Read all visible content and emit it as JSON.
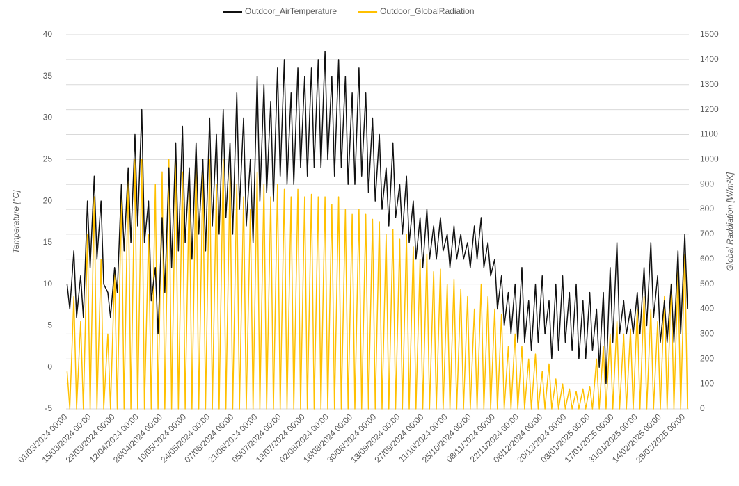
{
  "chart_data": {
    "type": "line",
    "y_label": "Temperature [°C]",
    "y2_label": "Global Raddiation [W/m²K]",
    "legend": "top",
    "grid": true,
    "ylim": [
      -5,
      40
    ],
    "yticks": [
      -5,
      0,
      5,
      10,
      15,
      20,
      25,
      30,
      35,
      40
    ],
    "y2lim": [
      0,
      1500
    ],
    "y2ticks": [
      0,
      100,
      200,
      300,
      400,
      500,
      600,
      700,
      800,
      900,
      1000,
      1100,
      1200,
      1300,
      1400,
      1500
    ],
    "xlim": [
      "01/03/2024 00:00",
      "03/03/2025 00:00"
    ],
    "xticks": [
      "01/03/2024 00:00",
      "15/03/2024 00:00",
      "29/03/2024 00:00",
      "12/04/2024 00:00",
      "26/04/2024 00:00",
      "10/05/2024 00:00",
      "24/05/2024 00:00",
      "07/06/2024 00:00",
      "21/06/2024 00:00",
      "05/07/2024 00:00",
      "19/07/2024 00:00",
      "02/08/2024 00:00",
      "16/08/2024 00:00",
      "30/08/2024 00:00",
      "13/09/2024 00:00",
      "27/09/2024 00:00",
      "11/10/2024 00:00",
      "25/10/2024 00:00",
      "08/11/2024 00:00",
      "22/11/2024 00:00",
      "06/12/2024 00:00",
      "20/12/2024 00:00",
      "03/01/2025 00:00",
      "17/01/2025 00:00",
      "31/01/2025 00:00",
      "14/02/2025 00:00",
      "28/02/2025 00:00"
    ],
    "x": [
      "01/03/2024 14:00",
      "03/03/2024 04:00",
      "05/03/2024 14:00",
      "07/03/2024 04:00",
      "09/03/2024 14:00",
      "11/03/2024 04:00",
      "13/03/2024 14:00",
      "15/03/2024 04:00",
      "17/03/2024 14:00",
      "19/03/2024 04:00",
      "21/03/2024 14:00",
      "23/03/2024 04:00",
      "25/03/2024 14:00",
      "27/03/2024 04:00",
      "29/03/2024 14:00",
      "31/03/2024 04:00",
      "02/04/2024 14:00",
      "04/04/2024 04:00",
      "06/04/2024 14:00",
      "08/04/2024 04:00",
      "10/04/2024 14:00",
      "12/04/2024 04:00",
      "14/04/2024 14:00",
      "16/04/2024 04:00",
      "18/04/2024 14:00",
      "20/04/2024 04:00",
      "22/04/2024 14:00",
      "24/04/2024 04:00",
      "26/04/2024 14:00",
      "28/04/2024 04:00",
      "30/04/2024 14:00",
      "02/05/2024 04:00",
      "04/05/2024 14:00",
      "06/05/2024 04:00",
      "08/05/2024 14:00",
      "10/05/2024 04:00",
      "12/05/2024 14:00",
      "14/05/2024 04:00",
      "16/05/2024 14:00",
      "18/05/2024 04:00",
      "20/05/2024 14:00",
      "22/05/2024 04:00",
      "24/05/2024 14:00",
      "26/05/2024 04:00",
      "28/05/2024 14:00",
      "30/05/2024 04:00",
      "01/06/2024 14:00",
      "03/06/2024 04:00",
      "05/06/2024 14:00",
      "07/06/2024 04:00",
      "09/06/2024 14:00",
      "11/06/2024 04:00",
      "13/06/2024 14:00",
      "15/06/2024 04:00",
      "17/06/2024 14:00",
      "19/06/2024 04:00",
      "21/06/2024 14:00",
      "23/06/2024 04:00",
      "25/06/2024 14:00",
      "27/06/2024 04:00",
      "29/06/2024 14:00",
      "01/07/2024 04:00",
      "03/07/2024 14:00",
      "05/07/2024 04:00",
      "07/07/2024 14:00",
      "09/07/2024 04:00",
      "11/07/2024 14:00",
      "13/07/2024 04:00",
      "15/07/2024 14:00",
      "17/07/2024 04:00",
      "19/07/2024 14:00",
      "21/07/2024 04:00",
      "23/07/2024 14:00",
      "25/07/2024 04:00",
      "27/07/2024 14:00",
      "29/07/2024 04:00",
      "31/07/2024 14:00",
      "02/08/2024 04:00",
      "04/08/2024 14:00",
      "06/08/2024 04:00",
      "08/08/2024 14:00",
      "10/08/2024 04:00",
      "12/08/2024 14:00",
      "14/08/2024 04:00",
      "16/08/2024 14:00",
      "18/08/2024 04:00",
      "20/08/2024 14:00",
      "22/08/2024 04:00",
      "24/08/2024 14:00",
      "26/08/2024 04:00",
      "28/08/2024 14:00",
      "30/08/2024 04:00",
      "01/09/2024 14:00",
      "03/09/2024 04:00",
      "05/09/2024 14:00",
      "07/09/2024 04:00",
      "09/09/2024 14:00",
      "11/09/2024 04:00",
      "13/09/2024 14:00",
      "15/09/2024 04:00",
      "17/09/2024 14:00",
      "19/09/2024 04:00",
      "21/09/2024 14:00",
      "23/09/2024 04:00",
      "25/09/2024 14:00",
      "27/09/2024 04:00",
      "29/09/2024 14:00",
      "01/10/2024 04:00",
      "03/10/2024 14:00",
      "05/10/2024 04:00",
      "07/10/2024 14:00",
      "09/10/2024 04:00",
      "11/10/2024 14:00",
      "13/10/2024 04:00",
      "15/10/2024 14:00",
      "17/10/2024 04:00",
      "19/10/2024 14:00",
      "21/10/2024 04:00",
      "23/10/2024 14:00",
      "25/10/2024 04:00",
      "27/10/2024 14:00",
      "29/10/2024 04:00",
      "31/10/2024 14:00",
      "02/11/2024 04:00",
      "04/11/2024 14:00",
      "06/11/2024 04:00",
      "08/11/2024 14:00",
      "10/11/2024 04:00",
      "12/11/2024 14:00",
      "14/11/2024 04:00",
      "16/11/2024 14:00",
      "18/11/2024 04:00",
      "20/11/2024 14:00",
      "22/11/2024 04:00",
      "24/11/2024 14:00",
      "26/11/2024 04:00",
      "28/11/2024 14:00",
      "30/11/2024 04:00",
      "02/12/2024 14:00",
      "04/12/2024 04:00",
      "06/12/2024 14:00",
      "08/12/2024 04:00",
      "10/12/2024 14:00",
      "12/12/2024 04:00",
      "14/12/2024 14:00",
      "16/12/2024 04:00",
      "18/12/2024 14:00",
      "20/12/2024 04:00",
      "22/12/2024 14:00",
      "24/12/2024 04:00",
      "26/12/2024 14:00",
      "28/12/2024 04:00",
      "30/12/2024 14:00",
      "01/01/2025 04:00",
      "03/01/2025 14:00",
      "05/01/2025 04:00",
      "07/01/2025 14:00",
      "09/01/2025 04:00",
      "11/01/2025 14:00",
      "13/01/2025 04:00",
      "15/01/2025 14:00",
      "17/01/2025 04:00",
      "19/01/2025 14:00",
      "21/01/2025 04:00",
      "23/01/2025 14:00",
      "25/01/2025 04:00",
      "27/01/2025 14:00",
      "29/01/2025 04:00",
      "31/01/2025 14:00",
      "02/02/2025 04:00",
      "04/02/2025 14:00",
      "06/02/2025 04:00",
      "08/02/2025 14:00",
      "10/02/2025 04:00",
      "12/02/2025 14:00",
      "14/02/2025 04:00",
      "16/02/2025 14:00",
      "18/02/2025 04:00",
      "20/02/2025 14:00",
      "22/02/2025 04:00",
      "24/02/2025 14:00",
      "26/02/2025 04:00",
      "28/02/2025 14:00",
      "02/03/2025 04:00"
    ],
    "series": [
      {
        "name": "Outdoor_AirTemperature",
        "color": "#111111",
        "axis": "y",
        "values": [
          10,
          7,
          14,
          6,
          11,
          6,
          20,
          12,
          23,
          13,
          20,
          10,
          9,
          6,
          12,
          9,
          22,
          14,
          24,
          15,
          28,
          17,
          31,
          15,
          20,
          8,
          12,
          4,
          18,
          9,
          24,
          12,
          27,
          14,
          29,
          15,
          24,
          13,
          27,
          16,
          25,
          14,
          30,
          17,
          28,
          16,
          31,
          18,
          27,
          16,
          33,
          19,
          30,
          17,
          25,
          15,
          35,
          20,
          34,
          21,
          32,
          20,
          36,
          23,
          37,
          22,
          33,
          22,
          36,
          24,
          35,
          23,
          36,
          24,
          37,
          24,
          38,
          25,
          35,
          23,
          37,
          24,
          35,
          22,
          33,
          22,
          36,
          23,
          33,
          21,
          30,
          20,
          28,
          19,
          24,
          17,
          27,
          18,
          22,
          16,
          23,
          15,
          20,
          13,
          18,
          12,
          19,
          13,
          17,
          13,
          18,
          14,
          16,
          12,
          17,
          13,
          16,
          13,
          15,
          12,
          17,
          13,
          18,
          12,
          15,
          11,
          13,
          7,
          11,
          5,
          9,
          4,
          10,
          3,
          12,
          3,
          8,
          2,
          10,
          3,
          11,
          4,
          8,
          1,
          10,
          2,
          11,
          3,
          9,
          2,
          10,
          1,
          8,
          1,
          9,
          2,
          7,
          0,
          9,
          -2,
          12,
          3,
          15,
          4,
          8,
          4,
          7,
          4,
          9,
          4,
          12,
          5,
          15,
          6,
          11,
          3,
          8,
          3,
          10,
          3,
          14,
          4,
          16,
          7
        ]
      },
      {
        "name": "Outdoor_GlobalRadiation",
        "color": "#ffc000",
        "axis": "y2",
        "values": [
          150,
          0,
          450,
          0,
          350,
          0,
          700,
          0,
          850,
          0,
          600,
          0,
          300,
          0,
          550,
          0,
          850,
          0,
          950,
          0,
          1000,
          0,
          1000,
          0,
          700,
          0,
          900,
          0,
          950,
          0,
          1000,
          0,
          1000,
          0,
          950,
          0,
          900,
          0,
          1000,
          0,
          950,
          0,
          1000,
          0,
          900,
          0,
          1000,
          0,
          950,
          0,
          900,
          0,
          850,
          0,
          800,
          0,
          950,
          0,
          900,
          0,
          850,
          0,
          900,
          0,
          880,
          0,
          850,
          0,
          880,
          0,
          850,
          0,
          860,
          0,
          850,
          0,
          850,
          0,
          820,
          0,
          850,
          0,
          800,
          0,
          780,
          0,
          800,
          0,
          780,
          0,
          760,
          0,
          750,
          0,
          700,
          0,
          720,
          0,
          680,
          0,
          700,
          0,
          650,
          0,
          600,
          0,
          620,
          0,
          550,
          0,
          560,
          0,
          500,
          0,
          520,
          0,
          480,
          0,
          450,
          0,
          400,
          0,
          500,
          0,
          450,
          0,
          400,
          0,
          380,
          0,
          250,
          0,
          300,
          0,
          250,
          0,
          200,
          0,
          220,
          0,
          150,
          0,
          180,
          0,
          120,
          0,
          100,
          0,
          80,
          0,
          70,
          0,
          80,
          0,
          90,
          0,
          200,
          0,
          250,
          0,
          300,
          0,
          350,
          0,
          300,
          0,
          320,
          0,
          400,
          0,
          450,
          0,
          400,
          0,
          350,
          0,
          450,
          0,
          500,
          0,
          550,
          0,
          620,
          0
        ]
      }
    ]
  }
}
